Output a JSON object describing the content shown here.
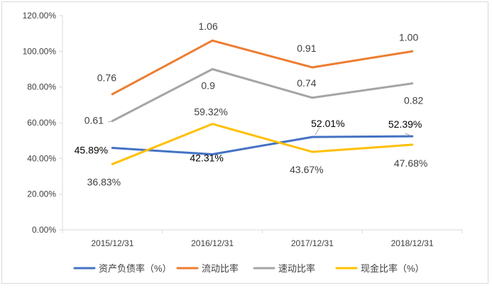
{
  "chart_data": {
    "type": "line",
    "categories": [
      "2015/12/31",
      "2016/12/31",
      "2017/12/31",
      "2018/12/31"
    ],
    "y_ticks": [
      "0.00%",
      "20.00%",
      "40.00%",
      "60.00%",
      "80.00%",
      "100.00%",
      "120.00%"
    ],
    "ylim": [
      0,
      120
    ],
    "grid": false,
    "legend_position": "bottom",
    "series": [
      {
        "name": "资产负债率（%）",
        "color": "#4472C4",
        "values": [
          45.89,
          42.31,
          52.01,
          52.39
        ],
        "labels": [
          "45.89%",
          "42.31%",
          "52.01%",
          "52.39%"
        ]
      },
      {
        "name": "流动比率",
        "color": "#ED7D31",
        "values": [
          76,
          106,
          91,
          100
        ],
        "labels": [
          "0.76",
          "1.06",
          "0.91",
          "1.00"
        ]
      },
      {
        "name": "速动比率",
        "color": "#A5A5A5",
        "values": [
          61,
          90,
          74,
          82
        ],
        "labels": [
          "0.61",
          "0.9",
          "0.74",
          "0.82"
        ]
      },
      {
        "name": "现金比率（%）",
        "color": "#FFC000",
        "values": [
          36.83,
          59.32,
          43.67,
          47.68
        ],
        "labels": [
          "36.83%",
          "59.32%",
          "43.67%",
          "47.68%"
        ]
      }
    ]
  }
}
